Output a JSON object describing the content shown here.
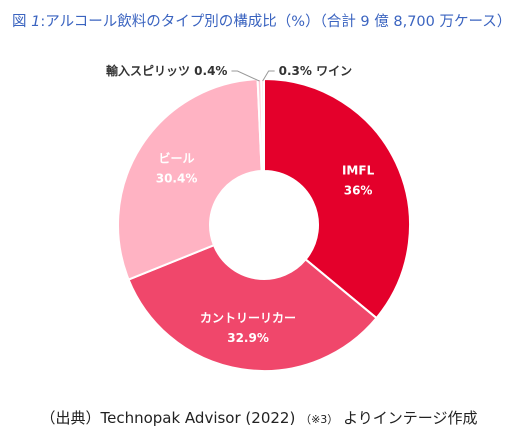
{
  "title": {
    "prefix": "図 ",
    "figure_number": "1",
    "text": ":アルコール飲料のタイプ別の構成比（%）（合計 9 億 8,700 万ケース）"
  },
  "source": {
    "main": "（出典）Technopak Advisor (2022)",
    "note": "（※3）",
    "suffix": "よりインテージ作成"
  },
  "chart_data": {
    "type": "pie",
    "variant": "donut",
    "title": "アルコール飲料のタイプ別の構成比（%）（合計 9 億 8,700 万ケース）",
    "slices": [
      {
        "label": "IMFL",
        "value": 36,
        "display": "36%",
        "color": "#e4002b",
        "label_color": "#ffffff",
        "label_position": "inside"
      },
      {
        "label": "カントリーリカー",
        "value": 32.9,
        "display": "32.9%",
        "color": "#f0476b",
        "label_color": "#ffffff",
        "label_position": "inside"
      },
      {
        "label": "ビール",
        "value": 30.4,
        "display": "30.4%",
        "color": "#ffb3c3",
        "label_color": "#ffffff",
        "label_position": "inside"
      },
      {
        "label": "輸入スピリッツ",
        "value": 0.4,
        "display": "0.4%",
        "color": "#ffc9d6",
        "label_color": "#333333",
        "label_position": "outside-left"
      },
      {
        "label": "ワイン",
        "value": 0.3,
        "display": "0.3%",
        "color": "#ffdfe6",
        "label_color": "#333333",
        "label_position": "outside-right"
      }
    ],
    "start": "12 o'clock",
    "direction": "clockwise",
    "legend": "none"
  }
}
